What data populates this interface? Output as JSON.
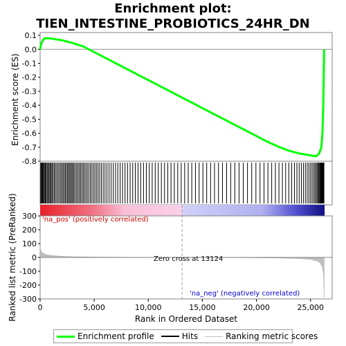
{
  "title_line1": "Enrichment plot:",
  "title_line2": "TIEN_INTESTINE_PROBIOTICS_24HR_DN",
  "chart_data": {
    "type": "line",
    "xlabel": "Rank in Ordered Dataset",
    "xlim": [
      0,
      27000
    ],
    "x_ticks": [
      0,
      5000,
      10000,
      15000,
      20000,
      25000
    ],
    "x_tick_labels": [
      "0",
      "5,000",
      "10,000",
      "15,000",
      "20,000",
      "25,000"
    ],
    "n_genes": 26300,
    "es_panel": {
      "ylabel": "Enrichment score (ES)",
      "ylim": [
        -0.8,
        0.12
      ],
      "y_ticks": [
        0.1,
        0.0,
        -0.1,
        -0.2,
        -0.3,
        -0.4,
        -0.5,
        -0.6,
        -0.7,
        -0.8
      ],
      "y_tick_labels": [
        "0.1",
        "0.0",
        "-0.1",
        "-0.2",
        "-0.3",
        "-0.4",
        "-0.5",
        "-0.6",
        "-0.7",
        "-0.8"
      ],
      "series": [
        {
          "name": "Enrichment profile",
          "color": "#00ff00",
          "points": [
            [
              0,
              0.0
            ],
            [
              100,
              0.04
            ],
            [
              250,
              0.065
            ],
            [
              450,
              0.08
            ],
            [
              1000,
              0.077
            ],
            [
              2000,
              0.065
            ],
            [
              3000,
              0.045
            ],
            [
              4000,
              0.02
            ],
            [
              5000,
              -0.02
            ],
            [
              6000,
              -0.06
            ],
            [
              7000,
              -0.1
            ],
            [
              8000,
              -0.14
            ],
            [
              9000,
              -0.18
            ],
            [
              10000,
              -0.22
            ],
            [
              11000,
              -0.26
            ],
            [
              12000,
              -0.3
            ],
            [
              13000,
              -0.34
            ],
            [
              14000,
              -0.38
            ],
            [
              15000,
              -0.42
            ],
            [
              16000,
              -0.46
            ],
            [
              17000,
              -0.5
            ],
            [
              18000,
              -0.54
            ],
            [
              19000,
              -0.58
            ],
            [
              20000,
              -0.62
            ],
            [
              21000,
              -0.66
            ],
            [
              22000,
              -0.695
            ],
            [
              23000,
              -0.725
            ],
            [
              24000,
              -0.745
            ],
            [
              25000,
              -0.758
            ],
            [
              25500,
              -0.765
            ],
            [
              25800,
              -0.745
            ],
            [
              26000,
              -0.7
            ],
            [
              26100,
              -0.6
            ],
            [
              26180,
              -0.4
            ],
            [
              26220,
              -0.2
            ],
            [
              26260,
              0.0
            ]
          ]
        }
      ]
    },
    "hits": {
      "name": "Hits",
      "positions": [
        60,
        120,
        190,
        250,
        320,
        400,
        480,
        560,
        650,
        740,
        830,
        920,
        1010,
        1100,
        1200,
        1310,
        1420,
        1540,
        1660,
        1780,
        1900,
        2010,
        2120,
        2230,
        2330,
        2440,
        2540,
        2640,
        2740,
        2840,
        2940,
        3040,
        3140,
        3260,
        3380,
        3500,
        3620,
        3740,
        3860,
        3980,
        4100,
        4230,
        4360,
        4500,
        4640,
        4780,
        4920,
        5060,
        5200,
        5350,
        5500,
        5660,
        5830,
        6000,
        6180,
        6370,
        6560,
        6760,
        6970,
        7180,
        7400,
        7620,
        7850,
        8080,
        8320,
        8560,
        8800,
        9050,
        9300,
        9560,
        9820,
        10090,
        10360,
        10640,
        10920,
        11210,
        11500,
        11800,
        12100,
        12410,
        12720,
        13040,
        13360,
        13690,
        14020,
        14360,
        14700,
        15050,
        15400,
        15760,
        16120,
        16490,
        16860,
        17240,
        17620,
        18000,
        18390,
        18780,
        19170,
        19560,
        19950,
        20330,
        20700,
        21060,
        21410,
        21750,
        22080,
        22400,
        22700,
        22990,
        23260,
        23510,
        23740,
        23950,
        24150,
        24340,
        24520,
        24690,
        24850,
        25000,
        25140,
        25270,
        25390,
        25500,
        25600,
        25690,
        25770,
        25840,
        25900,
        25950,
        26000,
        26040,
        26080,
        26120,
        26160,
        26200,
        26240
      ]
    },
    "ranking_panel": {
      "ylabel": "Ranked list metric (PreRanked)",
      "ylim": [
        -300,
        300
      ],
      "y_ticks": [
        300,
        200,
        100,
        0,
        -100,
        -200,
        -300
      ],
      "y_tick_labels": [
        "300",
        "200",
        "100",
        "0",
        "-100",
        "-200",
        "-300"
      ],
      "series_name": "Ranking metric scores",
      "color": "#c0c0c0",
      "profile": [
        [
          0,
          80
        ],
        [
          30,
          60
        ],
        [
          100,
          45
        ],
        [
          300,
          30
        ],
        [
          600,
          20
        ],
        [
          1000,
          14
        ],
        [
          2000,
          8
        ],
        [
          3000,
          5
        ],
        [
          5000,
          3
        ],
        [
          7000,
          2
        ],
        [
          10000,
          1
        ],
        [
          13124,
          0
        ],
        [
          16000,
          -1
        ],
        [
          19000,
          -2
        ],
        [
          22000,
          -4
        ],
        [
          24000,
          -8
        ],
        [
          25000,
          -14
        ],
        [
          25600,
          -25
        ],
        [
          25900,
          -40
        ],
        [
          26100,
          -70
        ],
        [
          26200,
          -120
        ],
        [
          26260,
          -290
        ]
      ],
      "zero_cross_label": "Zero cross at 13124",
      "zero_cross_x": 13124,
      "pos_label": "'na_pos' (positively correlated)",
      "neg_label": "'na_neg' (negatively correlated)",
      "pos_color": "#cc0000",
      "neg_color": "#0000cc"
    },
    "legend": {
      "placement": "bottom",
      "entries": [
        {
          "label": "Enrichment profile",
          "color": "#00ff00"
        },
        {
          "label": "Hits",
          "color": "#000000"
        },
        {
          "label": "Ranking metric scores",
          "color": "#c0c0c0"
        }
      ]
    }
  }
}
